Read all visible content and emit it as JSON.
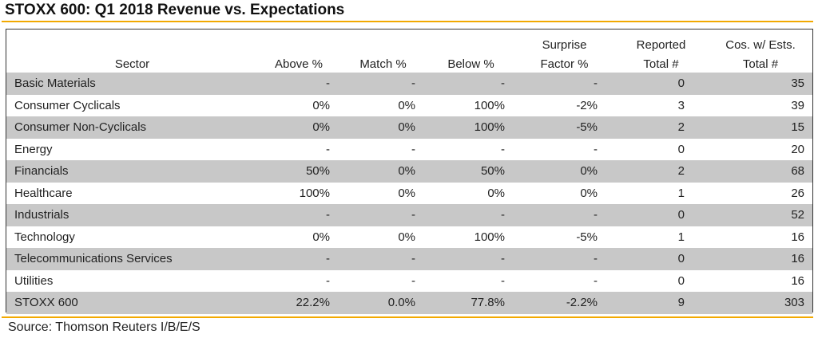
{
  "title": "STOXX 600: Q1 2018 Revenue vs. Expectations",
  "source": "Source: Thomson Reuters I/B/E/S",
  "colors": {
    "accent_rule": "#f2a900",
    "row_shade": "#c8c8c8"
  },
  "chart_data": {
    "type": "table",
    "title": "STOXX 600: Q1 2018 Revenue vs. Expectations",
    "headers": {
      "line1": [
        "",
        "",
        "",
        "",
        "Surprise",
        "Reported",
        "Cos. w/ Ests."
      ],
      "line2": [
        "Sector",
        "Above %",
        "Match %",
        "Below %",
        "Factor %",
        "Total #",
        "Total #"
      ]
    },
    "rows": [
      [
        "Basic Materials",
        "-",
        "-",
        "-",
        "-",
        "0",
        "35"
      ],
      [
        "Consumer Cyclicals",
        "0%",
        "0%",
        "100%",
        "-2%",
        "3",
        "39"
      ],
      [
        "Consumer Non-Cyclicals",
        "0%",
        "0%",
        "100%",
        "-5%",
        "2",
        "15"
      ],
      [
        "Energy",
        "-",
        "-",
        "-",
        "-",
        "0",
        "20"
      ],
      [
        "Financials",
        "50%",
        "0%",
        "50%",
        "0%",
        "2",
        "68"
      ],
      [
        "Healthcare",
        "100%",
        "0%",
        "0%",
        "0%",
        "1",
        "26"
      ],
      [
        "Industrials",
        "-",
        "-",
        "-",
        "-",
        "0",
        "52"
      ],
      [
        "Technology",
        "0%",
        "0%",
        "100%",
        "-5%",
        "1",
        "16"
      ],
      [
        "Telecommunications Services",
        "-",
        "-",
        "-",
        "-",
        "0",
        "16"
      ],
      [
        "Utilities",
        "-",
        "-",
        "-",
        "-",
        "0",
        "16"
      ],
      [
        "STOXX 600",
        "22.2%",
        "0.0%",
        "77.8%",
        "-2.2%",
        "9",
        "303"
      ]
    ]
  }
}
